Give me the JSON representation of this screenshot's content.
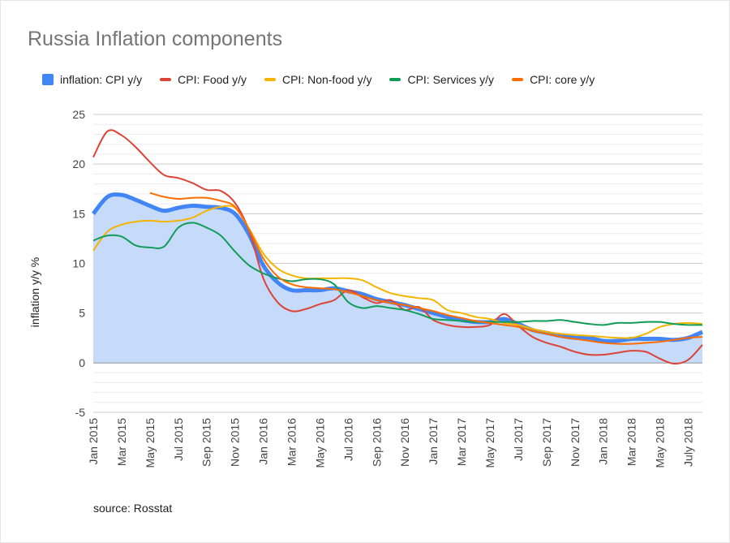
{
  "chart_data": {
    "type": "line",
    "title": "Russia Inflation components",
    "ylabel": "inflation y/y %",
    "xlabel": "",
    "ylim": [
      -5,
      25
    ],
    "yticks": [
      -5,
      0,
      5,
      10,
      15,
      20,
      25
    ],
    "grid": true,
    "legend": "top",
    "source": "source: Rosstat",
    "x": [
      "Jan 2015",
      "Feb 2015",
      "Mar 2015",
      "Apr 2015",
      "May 2015",
      "Jun 2015",
      "Jul 2015",
      "Aug 2015",
      "Sep 2015",
      "Oct 2015",
      "Nov 2015",
      "Dec 2015",
      "Jan 2016",
      "Feb 2016",
      "Mar 2016",
      "Apr 2016",
      "May 2016",
      "Jun 2016",
      "Jul 2016",
      "Aug 2016",
      "Sep 2016",
      "Oct 2016",
      "Nov 2016",
      "Dec 2016",
      "Jan 2017",
      "Feb 2017",
      "Mar 2017",
      "Apr 2017",
      "May 2017",
      "Jun 2017",
      "Jul 2017",
      "Aug 2017",
      "Sep 2017",
      "Oct 2017",
      "Nov 2017",
      "Dec 2017",
      "Jan 2018",
      "Feb 2018",
      "Mar 2018",
      "Apr 2018",
      "May 2018",
      "Jun 2018",
      "July 2018",
      "Aug 2018"
    ],
    "xtick_labels": [
      "Jan 2015",
      "Mar 2015",
      "May 2015",
      "Jul 2015",
      "Sep 2015",
      "Nov 2015",
      "Jan 2016",
      "Mar 2016",
      "May 2016",
      "Jul 2016",
      "Sep 2016",
      "Nov 2016",
      "Jan 2017",
      "Mar 2017",
      "May 2017",
      "Jul 2017",
      "Sep 2017",
      "Nov 2017",
      "Jan 2018",
      "Mar 2018",
      "May 2018",
      "July 2018"
    ],
    "series": [
      {
        "name": "inflation: CPI y/y",
        "color": "#4285f4",
        "style": "area",
        "values": [
          15.0,
          16.7,
          16.9,
          16.4,
          15.8,
          15.3,
          15.6,
          15.8,
          15.7,
          15.6,
          15.0,
          12.9,
          9.8,
          8.1,
          7.3,
          7.3,
          7.3,
          7.5,
          7.2,
          6.9,
          6.4,
          6.1,
          5.8,
          5.4,
          5.0,
          4.6,
          4.3,
          4.1,
          4.1,
          4.4,
          3.9,
          3.3,
          3.0,
          2.7,
          2.5,
          2.5,
          2.2,
          2.2,
          2.4,
          2.4,
          2.4,
          2.3,
          2.5,
          3.1
        ]
      },
      {
        "name": "CPI: Food y/y",
        "color": "#db4437",
        "values": [
          20.7,
          23.3,
          22.9,
          21.7,
          20.2,
          18.9,
          18.6,
          18.1,
          17.4,
          17.3,
          16.1,
          13.3,
          8.5,
          6.1,
          5.2,
          5.4,
          5.9,
          6.3,
          7.3,
          6.6,
          6.0,
          6.3,
          5.3,
          5.6,
          4.3,
          3.8,
          3.6,
          3.6,
          3.8,
          4.9,
          3.7,
          2.6,
          2.0,
          1.6,
          1.1,
          0.8,
          0.8,
          1.0,
          1.2,
          1.1,
          0.4,
          -0.1,
          0.3,
          1.8
        ]
      },
      {
        "name": "CPI: Non-food y/y",
        "color": "#f4b400",
        "values": [
          11.3,
          13.2,
          13.9,
          14.2,
          14.3,
          14.2,
          14.3,
          14.6,
          15.3,
          15.7,
          15.6,
          13.5,
          11.0,
          9.5,
          8.8,
          8.5,
          8.5,
          8.5,
          8.5,
          8.3,
          7.6,
          7.0,
          6.7,
          6.5,
          6.3,
          5.3,
          5.0,
          4.6,
          4.4,
          4.0,
          3.8,
          3.4,
          3.1,
          2.9,
          2.8,
          2.7,
          2.6,
          2.5,
          2.5,
          2.9,
          3.6,
          3.9,
          4.0,
          3.9
        ]
      },
      {
        "name": "CPI: Services y/y",
        "color": "#0f9d58",
        "values": [
          12.3,
          12.8,
          12.7,
          11.8,
          11.6,
          11.7,
          13.6,
          14.1,
          13.6,
          12.8,
          11.2,
          9.8,
          9.0,
          8.5,
          8.2,
          8.4,
          8.4,
          7.9,
          6.1,
          5.5,
          5.7,
          5.5,
          5.3,
          4.9,
          4.4,
          4.3,
          4.2,
          4.1,
          4.1,
          4.1,
          4.1,
          4.2,
          4.2,
          4.3,
          4.1,
          3.9,
          3.8,
          4.0,
          4.0,
          4.1,
          4.1,
          3.9,
          3.8,
          3.8
        ]
      },
      {
        "name": "CPI: core y/y",
        "color": "#ff6d00",
        "values": [
          null,
          null,
          null,
          null,
          17.1,
          16.7,
          16.5,
          16.6,
          16.6,
          16.3,
          15.7,
          13.4,
          10.5,
          8.7,
          7.9,
          7.6,
          7.5,
          7.4,
          7.1,
          6.7,
          6.3,
          6.0,
          5.8,
          5.5,
          5.2,
          4.8,
          4.5,
          4.2,
          4.0,
          3.8,
          3.6,
          3.2,
          2.9,
          2.6,
          2.4,
          2.2,
          2.0,
          1.9,
          1.9,
          2.0,
          2.1,
          2.3,
          2.5,
          2.6
        ]
      }
    ]
  }
}
